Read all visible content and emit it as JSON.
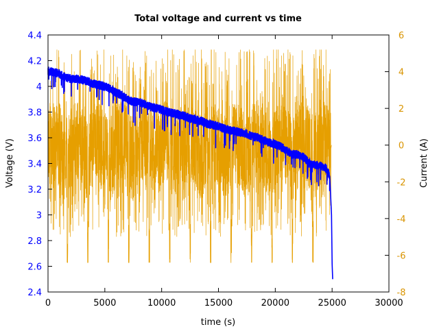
{
  "chart_data": {
    "type": "line",
    "title": "Total voltage and current vs time",
    "xlabel": "time (s)",
    "ylabel": "Voltage (V)",
    "y2label": "Current (A)",
    "xlim": [
      0,
      30000
    ],
    "ylim": [
      2.4,
      4.4
    ],
    "y2lim": [
      -8,
      6
    ],
    "xticks": [
      "0",
      "5000",
      "10000",
      "15000",
      "20000",
      "25000",
      "30000"
    ],
    "yticks": [
      "2.4",
      "2.6",
      "2.8",
      "3",
      "3.2",
      "3.4",
      "3.6",
      "3.8",
      "4",
      "4.2",
      "4.4"
    ],
    "y2ticks": [
      "-8",
      "-6",
      "-4",
      "-2",
      "0",
      "2",
      "4",
      "6"
    ],
    "grid": false,
    "colors": {
      "voltage": "#0000ff",
      "current": "#e69f00"
    },
    "series": [
      {
        "axis": "left",
        "x": [
          0,
          500,
          1000,
          1500,
          2000,
          2500,
          3000,
          3500,
          4000,
          4500,
          5000,
          5500,
          6000,
          6500,
          7000,
          7500,
          8000,
          8500,
          9000,
          9500,
          10000,
          10500,
          11000,
          11500,
          12000,
          12500,
          13000,
          13500,
          14000,
          14500,
          15000,
          15500,
          16000,
          16500,
          17000,
          17500,
          18000,
          18500,
          19000,
          19500,
          20000,
          20500,
          21000,
          21500,
          22000,
          22500,
          23000,
          23500,
          24000,
          24500,
          24800,
          24950,
          25000,
          25050
        ],
        "values": [
          4.12,
          4.11,
          4.1,
          4.07,
          4.06,
          4.06,
          4.05,
          4.04,
          4.02,
          4.01,
          4.0,
          3.98,
          3.95,
          3.93,
          3.9,
          3.88,
          3.88,
          3.86,
          3.84,
          3.83,
          3.82,
          3.8,
          3.79,
          3.78,
          3.77,
          3.75,
          3.74,
          3.73,
          3.71,
          3.7,
          3.69,
          3.67,
          3.66,
          3.65,
          3.64,
          3.63,
          3.61,
          3.6,
          3.58,
          3.56,
          3.55,
          3.53,
          3.5,
          3.47,
          3.47,
          3.45,
          3.4,
          3.39,
          3.38,
          3.36,
          3.3,
          3.0,
          2.62,
          2.5
        ]
      },
      {
        "axis": "right",
        "x": [
          0,
          500,
          1000,
          1500,
          2000,
          2500,
          3000,
          3500,
          4000,
          4500,
          5000,
          5500,
          6000,
          6500,
          7000,
          7500,
          8000,
          8500,
          9000,
          9500,
          10000,
          10500,
          11000,
          11500,
          12000,
          12500,
          13000,
          13500,
          14000,
          14500,
          15000,
          15500,
          16000,
          16500,
          17000,
          17500,
          18000,
          18500,
          19000,
          19500,
          20000,
          20500,
          21000,
          21500,
          22000,
          22500,
          23000,
          23500,
          24000,
          24500,
          25000
        ],
        "values": [
          0,
          1,
          -1,
          -6,
          0,
          2,
          -1,
          -6,
          0,
          1,
          -1,
          -6,
          0,
          2,
          -1,
          -6,
          0,
          1,
          -1,
          -6,
          0,
          2,
          -1,
          -6,
          0,
          1,
          -1,
          -6,
          0,
          2,
          -1,
          -6,
          0,
          1,
          -1,
          -6,
          0,
          2,
          -1,
          -6,
          0,
          1,
          -1,
          -6,
          0,
          2,
          -1,
          -6,
          0,
          0,
          0
        ]
      }
    ]
  }
}
